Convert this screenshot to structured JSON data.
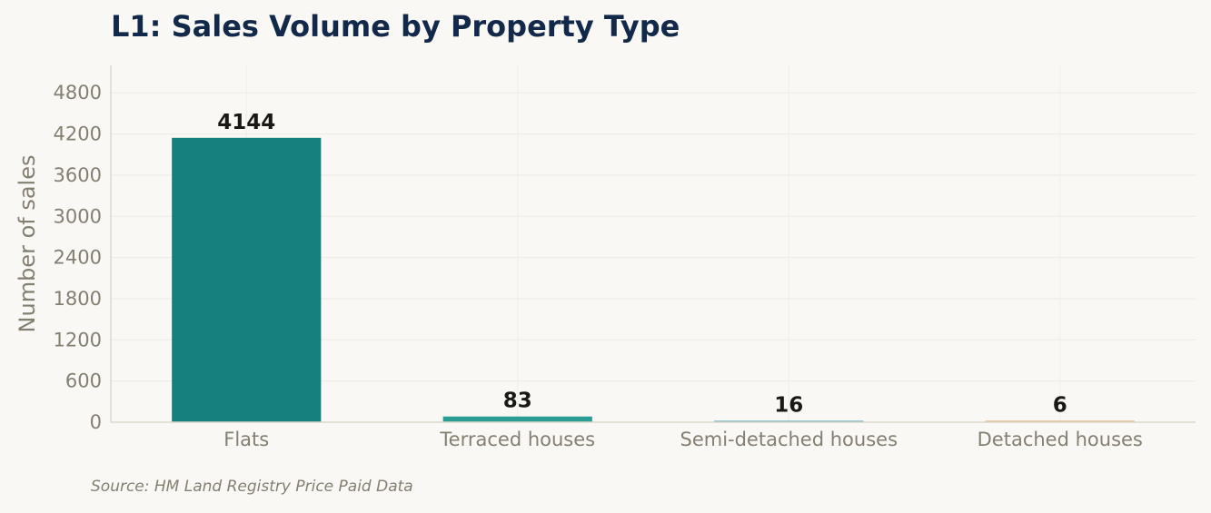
{
  "chart_data": {
    "type": "bar",
    "title": "L1: Sales Volume by Property Type",
    "categories": [
      "Flats",
      "Terraced houses",
      "Semi-detached houses",
      "Detached houses"
    ],
    "values": [
      4144,
      83,
      16,
      6
    ],
    "data_labels": [
      "4144",
      "83",
      "16",
      "6"
    ],
    "colors": [
      "#16807e",
      "#2a9d94",
      "#3a9aae",
      "#d9a15a"
    ],
    "ylabel": "Number of sales",
    "xlabel": "",
    "ylim": [
      0,
      5200
    ],
    "yticks": [
      0,
      600,
      1200,
      1800,
      2400,
      3000,
      3600,
      4200,
      4800
    ],
    "grid": true,
    "legend": "none"
  },
  "footer": {
    "source": "Source: HM Land Registry Price Paid Data"
  }
}
